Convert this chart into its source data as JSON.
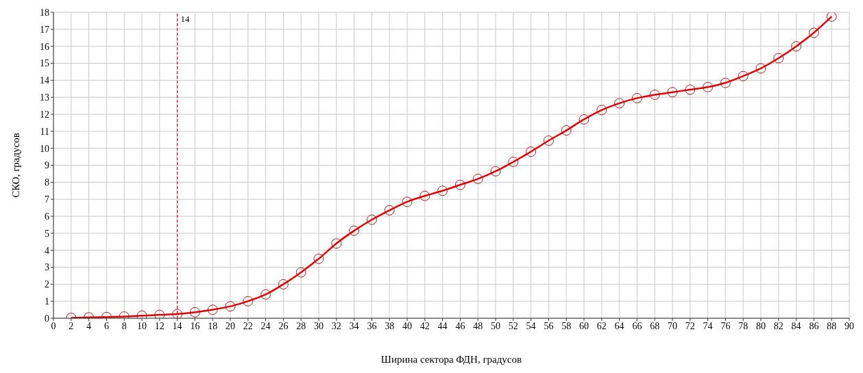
{
  "chart_data": {
    "type": "line",
    "xlabel": "Ширина сектора ФДН, градусов",
    "ylabel": "СКО, градусов",
    "x": [
      2,
      4,
      6,
      8,
      10,
      12,
      14,
      16,
      18,
      20,
      22,
      24,
      26,
      28,
      30,
      32,
      34,
      36,
      38,
      40,
      42,
      44,
      46,
      48,
      50,
      52,
      54,
      56,
      58,
      60,
      62,
      64,
      66,
      68,
      70,
      72,
      74,
      76,
      78,
      80,
      82,
      84,
      86,
      88
    ],
    "series": [
      {
        "color": "#e00000",
        "values": [
          0.02,
          0.05,
          0.07,
          0.1,
          0.15,
          0.2,
          0.25,
          0.35,
          0.5,
          0.7,
          1.0,
          1.4,
          2.0,
          2.7,
          3.5,
          4.4,
          5.15,
          5.8,
          6.35,
          6.85,
          7.2,
          7.5,
          7.85,
          8.2,
          8.65,
          9.2,
          9.8,
          10.45,
          11.05,
          11.7,
          12.25,
          12.65,
          12.95,
          13.15,
          13.3,
          13.45,
          13.6,
          13.85,
          14.25,
          14.7,
          15.3,
          16.0,
          16.8,
          17.75
        ]
      }
    ],
    "xlim": [
      0,
      90
    ],
    "xticks": [
      0,
      2,
      4,
      6,
      8,
      10,
      12,
      14,
      16,
      18,
      20,
      22,
      24,
      26,
      28,
      30,
      32,
      34,
      36,
      38,
      40,
      42,
      44,
      46,
      48,
      50,
      52,
      54,
      56,
      58,
      60,
      62,
      64,
      66,
      68,
      70,
      72,
      74,
      76,
      78,
      80,
      82,
      84,
      86,
      88,
      90
    ],
    "ylim": [
      0,
      18
    ],
    "yticks": [
      0,
      1,
      2,
      3,
      4,
      5,
      6,
      7,
      8,
      9,
      10,
      11,
      12,
      13,
      14,
      15,
      16,
      17,
      18
    ],
    "ref_lines": [
      {
        "axis": "x",
        "value": 14,
        "label": "14",
        "color": "#c00000",
        "line_style": "dashed"
      }
    ],
    "grid": true,
    "marker": "circle",
    "line_style": "solid"
  }
}
